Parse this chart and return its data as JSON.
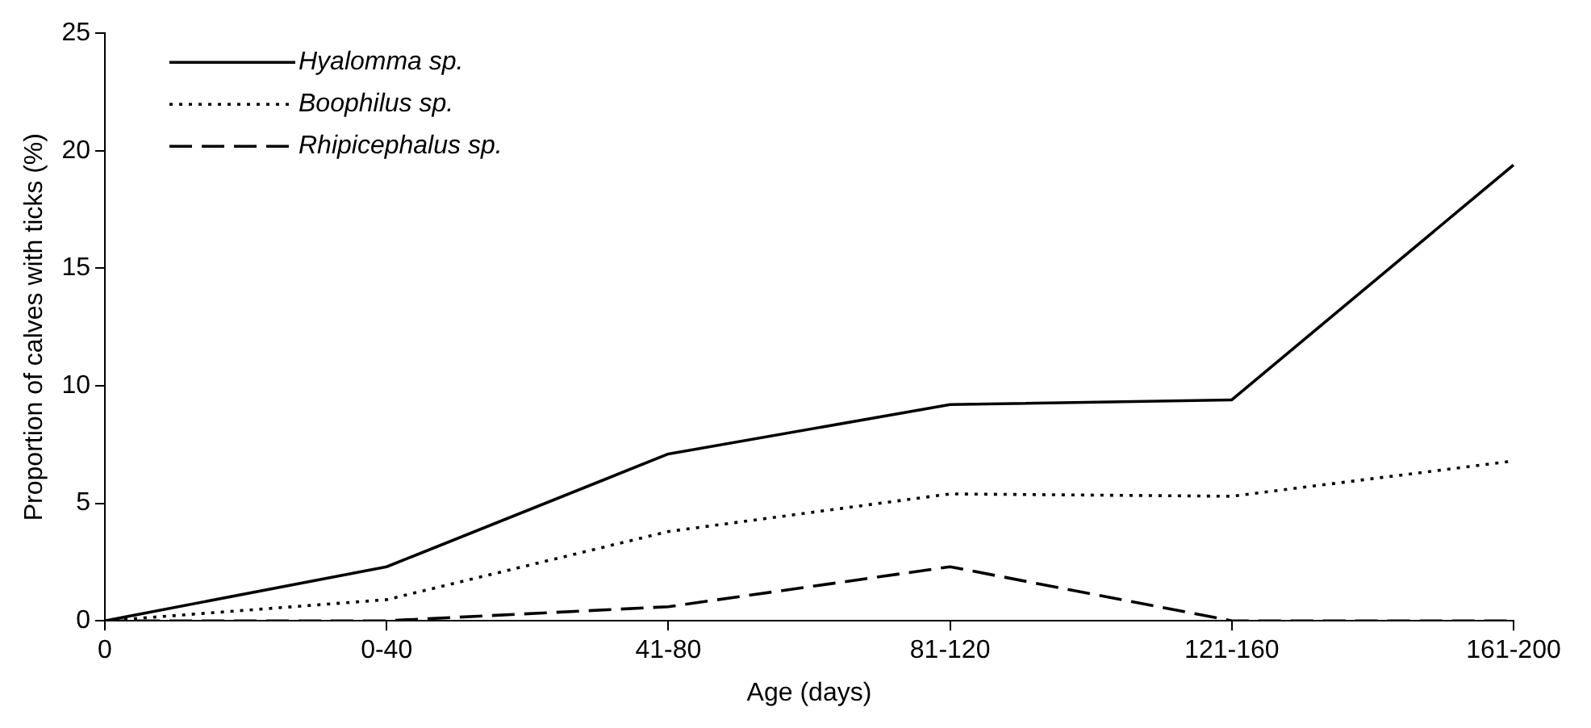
{
  "chart_data": {
    "type": "line",
    "xlabel": "Age (days)",
    "ylabel": "Proportion of calves with ticks (%)",
    "categories": [
      "0",
      "0-40",
      "41-80",
      "81-120",
      "121-160",
      "161-200"
    ],
    "series": [
      {
        "name": "Hyalomma sp.",
        "color": "#000000",
        "line_style": "solid",
        "values": [
          0,
          2.3,
          7.1,
          9.2,
          9.4,
          19.4
        ]
      },
      {
        "name": "Boophilus sp.",
        "color": "#000000",
        "line_style": "dotted",
        "values": [
          0,
          0.9,
          3.8,
          5.4,
          5.3,
          6.8
        ]
      },
      {
        "name": "Rhipicephalus sp.",
        "color": "#000000",
        "line_style": "dashed",
        "values": [
          0,
          0,
          0.6,
          2.3,
          0,
          0
        ]
      }
    ],
    "ylim": [
      0,
      25
    ],
    "yticks": [
      0,
      5,
      10,
      15,
      20,
      25
    ],
    "grid": false,
    "legend": "top left",
    "marker": "none"
  }
}
